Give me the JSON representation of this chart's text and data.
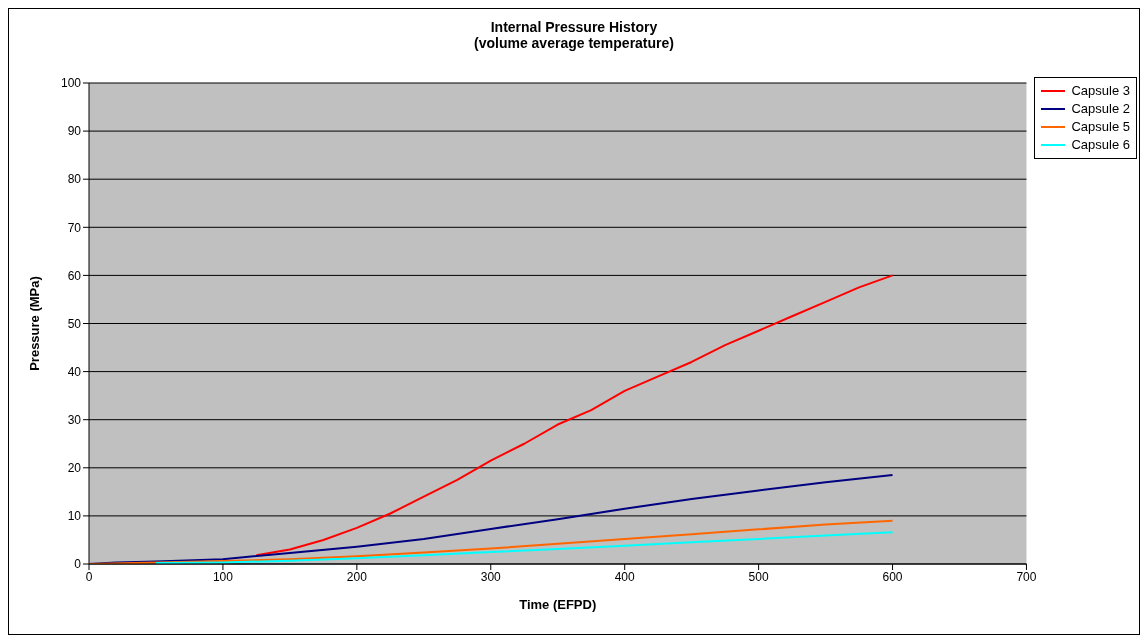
{
  "chart_data": {
    "type": "line",
    "title": "Internal Pressure History\n(volume average temperature)",
    "xlabel": "Time  (EFPD)",
    "ylabel": "Pressure (MPa)",
    "xlim": [
      0,
      700
    ],
    "xticks": [
      0,
      100,
      200,
      300,
      400,
      500,
      600,
      700
    ],
    "ylim": [
      0,
      100
    ],
    "yticks": [
      0,
      10,
      20,
      30,
      40,
      50,
      60,
      70,
      80,
      90,
      100
    ],
    "grid": "y",
    "legend": "top right",
    "marker": "none",
    "line_style": "solid",
    "series": [
      {
        "name": "Capsule 3",
        "color": "#ff0000",
        "x": [
          125,
          150,
          175,
          200,
          225,
          250,
          275,
          300,
          325,
          350,
          375,
          400,
          425,
          450,
          475,
          500,
          525,
          550,
          575,
          600
        ],
        "values": [
          1.8,
          3,
          5,
          7.5,
          10.5,
          14,
          17.5,
          21.5,
          25,
          29,
          32,
          36,
          39,
          42,
          45.5,
          48.5,
          51.5,
          54.5,
          57.5,
          60
        ]
      },
      {
        "name": "Capsule 2",
        "color": "#000080",
        "x": [
          0,
          20,
          50,
          100,
          150,
          200,
          250,
          300,
          350,
          400,
          450,
          500,
          550,
          600
        ],
        "values": [
          0,
          0.3,
          0.5,
          1,
          2.3,
          3.6,
          5.2,
          7.3,
          9.3,
          11.5,
          13.5,
          15.3,
          17,
          18.5
        ]
      },
      {
        "name": "Capsule 5",
        "color": "#ff6600",
        "x": [
          0,
          50,
          100,
          150,
          200,
          250,
          300,
          350,
          400,
          450,
          500,
          550,
          600
        ],
        "values": [
          0,
          0.3,
          0.6,
          1,
          1.6,
          2.4,
          3.2,
          4.2,
          5.2,
          6.2,
          7.2,
          8.2,
          9
        ]
      },
      {
        "name": "Capsule 6",
        "color": "#00ffff",
        "x": [
          50,
          100,
          150,
          200,
          250,
          300,
          350,
          400,
          450,
          500,
          550,
          600
        ],
        "values": [
          0.2,
          0.3,
          0.7,
          1.2,
          1.8,
          2.5,
          3.1,
          3.8,
          4.5,
          5.2,
          5.9,
          6.6
        ]
      }
    ]
  }
}
